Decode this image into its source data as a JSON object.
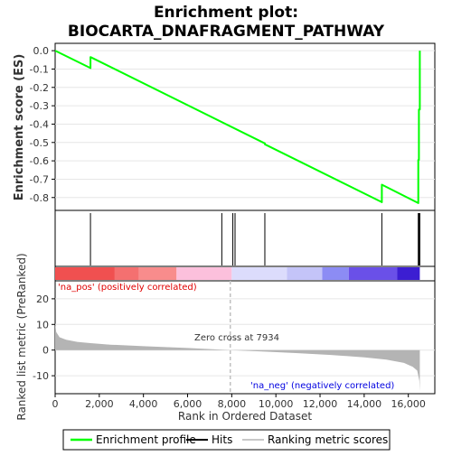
{
  "chart_data": {
    "type": "line",
    "title_line1": "Enrichment plot:",
    "title_line2": "BIOCARTA_DNAFRAGMENT_PATHWAY",
    "es_panel": {
      "ylabel": "Enrichment score (ES)",
      "ylim": [
        -0.87,
        0.04
      ],
      "yticks": [
        "0.0",
        "-0.1",
        "-0.2",
        "-0.3",
        "-0.4",
        "-0.5",
        "-0.6",
        "-0.7",
        "-0.8"
      ],
      "ytick_values": [
        0.0,
        -0.1,
        -0.2,
        -0.3,
        -0.4,
        -0.5,
        -0.6,
        -0.7,
        -0.8
      ],
      "line_color": "#00ff00",
      "points": [
        [
          0,
          0.0
        ],
        [
          1600,
          -0.095
        ],
        [
          1600,
          -0.035
        ],
        [
          9500,
          -0.505
        ],
        [
          9500,
          -0.51
        ],
        [
          14800,
          -0.825
        ],
        [
          14800,
          -0.73
        ],
        [
          16450,
          -0.83
        ],
        [
          16450,
          -0.595
        ],
        [
          16480,
          -0.595
        ],
        [
          16480,
          -0.32
        ],
        [
          16520,
          -0.32
        ],
        [
          16520,
          0.0
        ]
      ]
    },
    "hits": [
      1600,
      7550,
      8050,
      8150,
      9500,
      14800,
      16450,
      16480,
      16520
    ],
    "xlim": [
      0,
      17200
    ],
    "xticks": [
      "0",
      "2,000",
      "4,000",
      "6,000",
      "8,000",
      "10,000",
      "12,000",
      "14,000",
      "16,000"
    ],
    "xtick_values": [
      0,
      2000,
      4000,
      6000,
      8000,
      10000,
      12000,
      14000,
      16000
    ],
    "xlabel": "Rank in Ordered Dataset",
    "color_bar": [
      {
        "from": 0,
        "to": 2700,
        "color": "#f05050"
      },
      {
        "from": 2700,
        "to": 3800,
        "color": "#f47070"
      },
      {
        "from": 3800,
        "to": 5500,
        "color": "#f88c8c"
      },
      {
        "from": 5500,
        "to": 8000,
        "color": "#fcc0dc"
      },
      {
        "from": 8000,
        "to": 10500,
        "color": "#dcdcfc"
      },
      {
        "from": 10500,
        "to": 12100,
        "color": "#c4c4f8"
      },
      {
        "from": 12100,
        "to": 13300,
        "color": "#8c8cf4"
      },
      {
        "from": 13300,
        "to": 15500,
        "color": "#6a50e8"
      },
      {
        "from": 15500,
        "to": 16520,
        "color": "#3c1ed2"
      }
    ],
    "rank_panel": {
      "ylabel": "Ranked list metric (PreRanked)",
      "ylim": [
        -17,
        27
      ],
      "yticks": [
        "20",
        "10",
        "0",
        "-10"
      ],
      "ytick_values": [
        20,
        10,
        0,
        -10
      ],
      "fill_color": "#b4b4b4",
      "profile": [
        [
          0,
          10.5
        ],
        [
          50,
          7.0
        ],
        [
          200,
          5.0
        ],
        [
          500,
          4.0
        ],
        [
          1000,
          3.2
        ],
        [
          1600,
          2.7
        ],
        [
          2500,
          2.1
        ],
        [
          4000,
          1.5
        ],
        [
          6000,
          0.8
        ],
        [
          7934,
          0.0
        ],
        [
          9500,
          -0.6
        ],
        [
          11000,
          -1.2
        ],
        [
          12500,
          -1.9
        ],
        [
          14000,
          -2.8
        ],
        [
          15000,
          -3.7
        ],
        [
          15800,
          -5.0
        ],
        [
          16200,
          -6.5
        ],
        [
          16400,
          -8.0
        ],
        [
          16500,
          -12.0
        ],
        [
          16520,
          -16.0
        ]
      ],
      "zero_cross_value": 7934,
      "zero_cross_label": "Zero cross at 7934",
      "pos_label": "'na_pos' (positively correlated)",
      "neg_label": "'na_neg' (negatively correlated)",
      "pos_color": "#e00000",
      "neg_color": "#0000e0"
    },
    "legend": {
      "placement": "bottom",
      "items": [
        {
          "label": "Enrichment profile",
          "color": "#00ff00",
          "kind": "line"
        },
        {
          "label": "Hits",
          "color": "#000000",
          "kind": "line"
        },
        {
          "label": "Ranking metric scores",
          "color": "#c8c8c8",
          "kind": "line"
        }
      ]
    }
  }
}
